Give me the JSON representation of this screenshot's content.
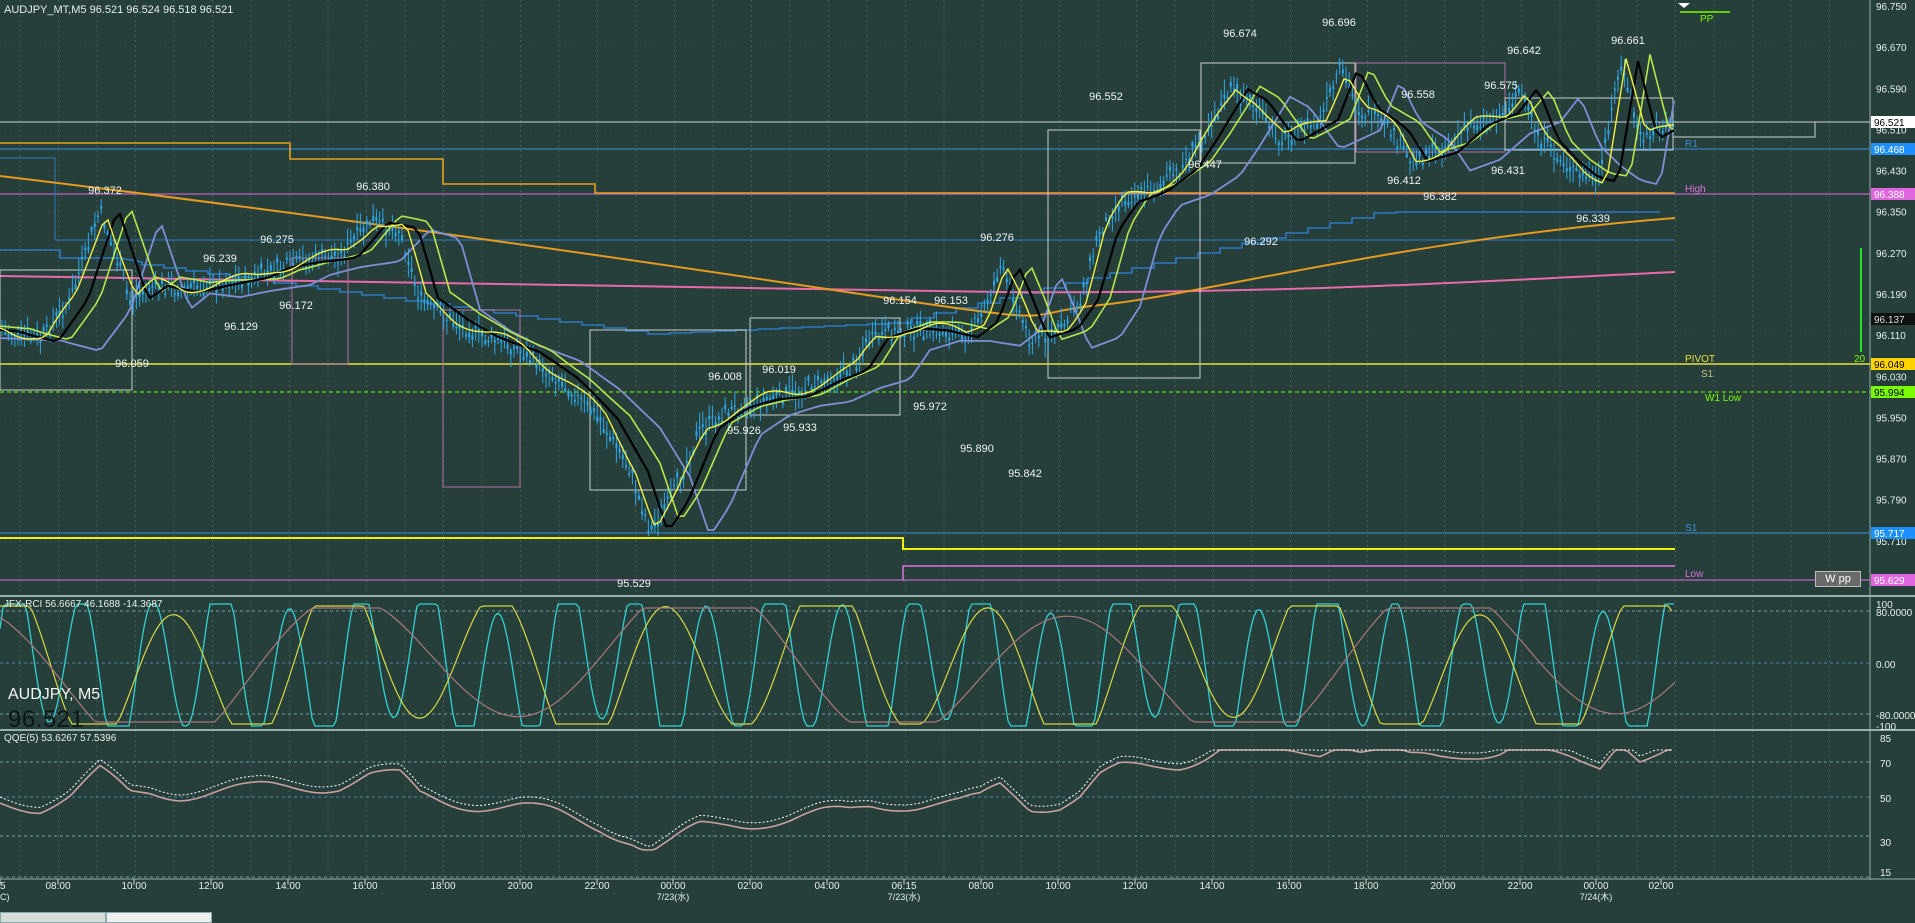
{
  "header": {
    "main_title": "AUDJPY_MT,M5  96.521 96.524 96.518 96.521",
    "rci_title": "JFX-RCI 56.6667 46.1688 -14.3687",
    "qqe_title": "QQE(5) 53.6267 57.5396"
  },
  "symbol": {
    "name": "AUDJPY, M5",
    "price": "96.521"
  },
  "price_axis": [
    "96.750",
    "96.670",
    "96.590",
    "96.510",
    "96.430",
    "96.350",
    "96.270",
    "96.190",
    "96.110",
    "96.030",
    "95.950",
    "95.870",
    "95.790",
    "95.710"
  ],
  "price_tags": {
    "current": {
      "text": "96.521",
      "color": "#ffffff",
      "bg": "#ffffff"
    },
    "r1": {
      "text": "96.468",
      "bg": "#1e8fff"
    },
    "high": {
      "text": "96.388",
      "bg": "#e066e0"
    },
    "c1": {
      "text": "96.137",
      "bg": "#111"
    },
    "pivot": {
      "text": "96.049",
      "bg": "#ffd400"
    },
    "w1low": {
      "text": "95.994",
      "bg": "#7cfc00"
    },
    "s1": {
      "text": "95.717",
      "bg": "#1e8fff"
    },
    "low": {
      "text": "95.629",
      "bg": "#e066e0"
    }
  },
  "level_labels": {
    "pp": "PP",
    "r1": "R1",
    "high": "High",
    "pivot": "PIVOT",
    "s1_top": "S1",
    "w1low": "W1 Low",
    "s1": "S1",
    "low": "Low",
    "twenty": "20",
    "wpp": "W pp"
  },
  "rci_axis": [
    "100",
    "80.0000",
    "0.00",
    "-80.0000",
    "-100"
  ],
  "qqe_axis": [
    "85",
    "70",
    "50",
    "30",
    "15"
  ],
  "time_axis": [
    {
      "label": "5",
      "sub": "C)"
    },
    {
      "label": "08:00",
      "sub": ""
    },
    {
      "label": "10:00",
      "sub": ""
    },
    {
      "label": "12:00",
      "sub": ""
    },
    {
      "label": "14:00",
      "sub": ""
    },
    {
      "label": "16:00",
      "sub": ""
    },
    {
      "label": "18:00",
      "sub": ""
    },
    {
      "label": "20:00",
      "sub": ""
    },
    {
      "label": "22:00",
      "sub": ""
    },
    {
      "label": "00:00",
      "sub": "7/23(水)"
    },
    {
      "label": "02:00",
      "sub": ""
    },
    {
      "label": "04:00",
      "sub": ""
    },
    {
      "label": "06:15",
      "sub": "7/23(水)"
    },
    {
      "label": "08:00",
      "sub": ""
    },
    {
      "label": "10:00",
      "sub": ""
    },
    {
      "label": "12:00",
      "sub": ""
    },
    {
      "label": "14:00",
      "sub": ""
    },
    {
      "label": "16:00",
      "sub": ""
    },
    {
      "label": "18:00",
      "sub": ""
    },
    {
      "label": "20:00",
      "sub": ""
    },
    {
      "label": "22:00",
      "sub": ""
    },
    {
      "label": "00:00",
      "sub": "7/24(木)"
    },
    {
      "label": "02:00",
      "sub": ""
    }
  ],
  "peak_labels": [
    {
      "text": "96.372"
    },
    {
      "text": "96.380"
    },
    {
      "text": "96.239"
    },
    {
      "text": "96.275"
    },
    {
      "text": "96.172"
    },
    {
      "text": "96.129"
    },
    {
      "text": "96.059"
    },
    {
      "text": "96.008"
    },
    {
      "text": "96.019"
    },
    {
      "text": "95.926"
    },
    {
      "text": "95.933"
    },
    {
      "text": "95.529"
    },
    {
      "text": "96.154"
    },
    {
      "text": "96.153"
    },
    {
      "text": "96.276"
    },
    {
      "text": "95.972"
    },
    {
      "text": "95.890"
    },
    {
      "text": "95.842"
    },
    {
      "text": "96.552"
    },
    {
      "text": "96.674"
    },
    {
      "text": "96.447"
    },
    {
      "text": "96.292"
    },
    {
      "text": "96.696"
    },
    {
      "text": "96.558"
    },
    {
      "text": "96.412"
    },
    {
      "text": "96.382"
    },
    {
      "text": "96.575"
    },
    {
      "text": "96.642"
    },
    {
      "text": "96.431"
    },
    {
      "text": "96.661"
    },
    {
      "text": "96.339"
    }
  ],
  "colors": {
    "background": "#263f3b",
    "grid": "#6f8a85",
    "candle": "#2fa6e6",
    "ma_black": "#000000",
    "ma_yellow": "#f0f040",
    "ma_green": "#b8e64a",
    "ma_blue": "#7e8fd6",
    "ma_orange": "#e6a020",
    "ma_pink": "#e0709a",
    "rci_cyan": "#32d2d2",
    "rci_yellow": "#d8d840",
    "rci_brown": "#a8787a",
    "qqe_line": "#c8a0a0",
    "qqe_dots": "#ffffff"
  }
}
